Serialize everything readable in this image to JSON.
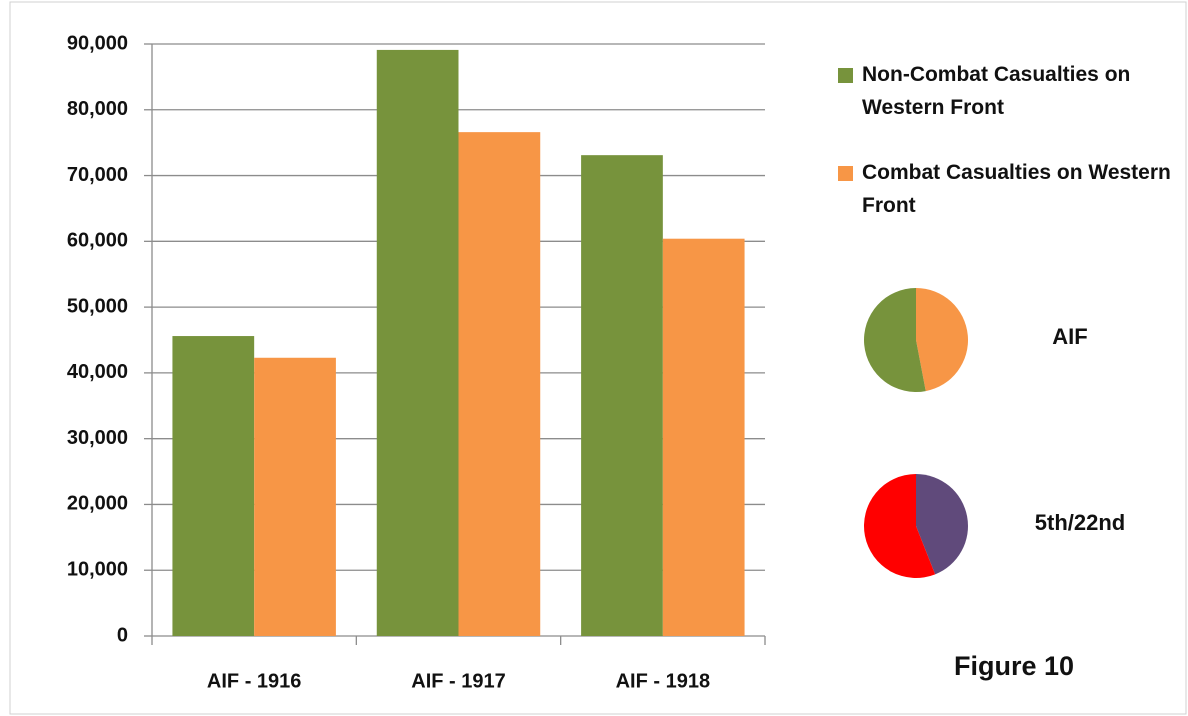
{
  "chart_data": [
    {
      "type": "bar",
      "categories": [
        "AIF - 1916",
        "AIF - 1917",
        "AIF - 1918"
      ],
      "series": [
        {
          "name": "Non-Combat Casualties on Western Front",
          "color": "#77933c",
          "values": [
            45600,
            89100,
            73100
          ]
        },
        {
          "name": "Combat Casualties on Western Front",
          "color": "#f79646",
          "values": [
            42300,
            76600,
            60400
          ]
        }
      ],
      "ylim": [
        0,
        90000
      ],
      "yticks": [
        {
          "value": 0,
          "label": "0"
        },
        {
          "value": 10000,
          "label": "10,000"
        },
        {
          "value": 20000,
          "label": "20,000"
        },
        {
          "value": 30000,
          "label": "30,000"
        },
        {
          "value": 40000,
          "label": "40,000"
        },
        {
          "value": 50000,
          "label": "50,000"
        },
        {
          "value": 60000,
          "label": "60,000"
        },
        {
          "value": 70000,
          "label": "70,000"
        },
        {
          "value": 80000,
          "label": "80,000"
        },
        {
          "value": 90000,
          "label": "90,000"
        }
      ],
      "grid": true,
      "legend": "right",
      "annotation": "Figure 10"
    },
    {
      "type": "pie",
      "title": "AIF",
      "values": [
        47,
        53
      ],
      "colors": [
        "#f79646",
        "#77933c"
      ]
    },
    {
      "type": "pie",
      "title": "5th/22nd",
      "values": [
        44,
        56
      ],
      "colors": [
        "#604a7b",
        "#ff0000"
      ]
    }
  ]
}
